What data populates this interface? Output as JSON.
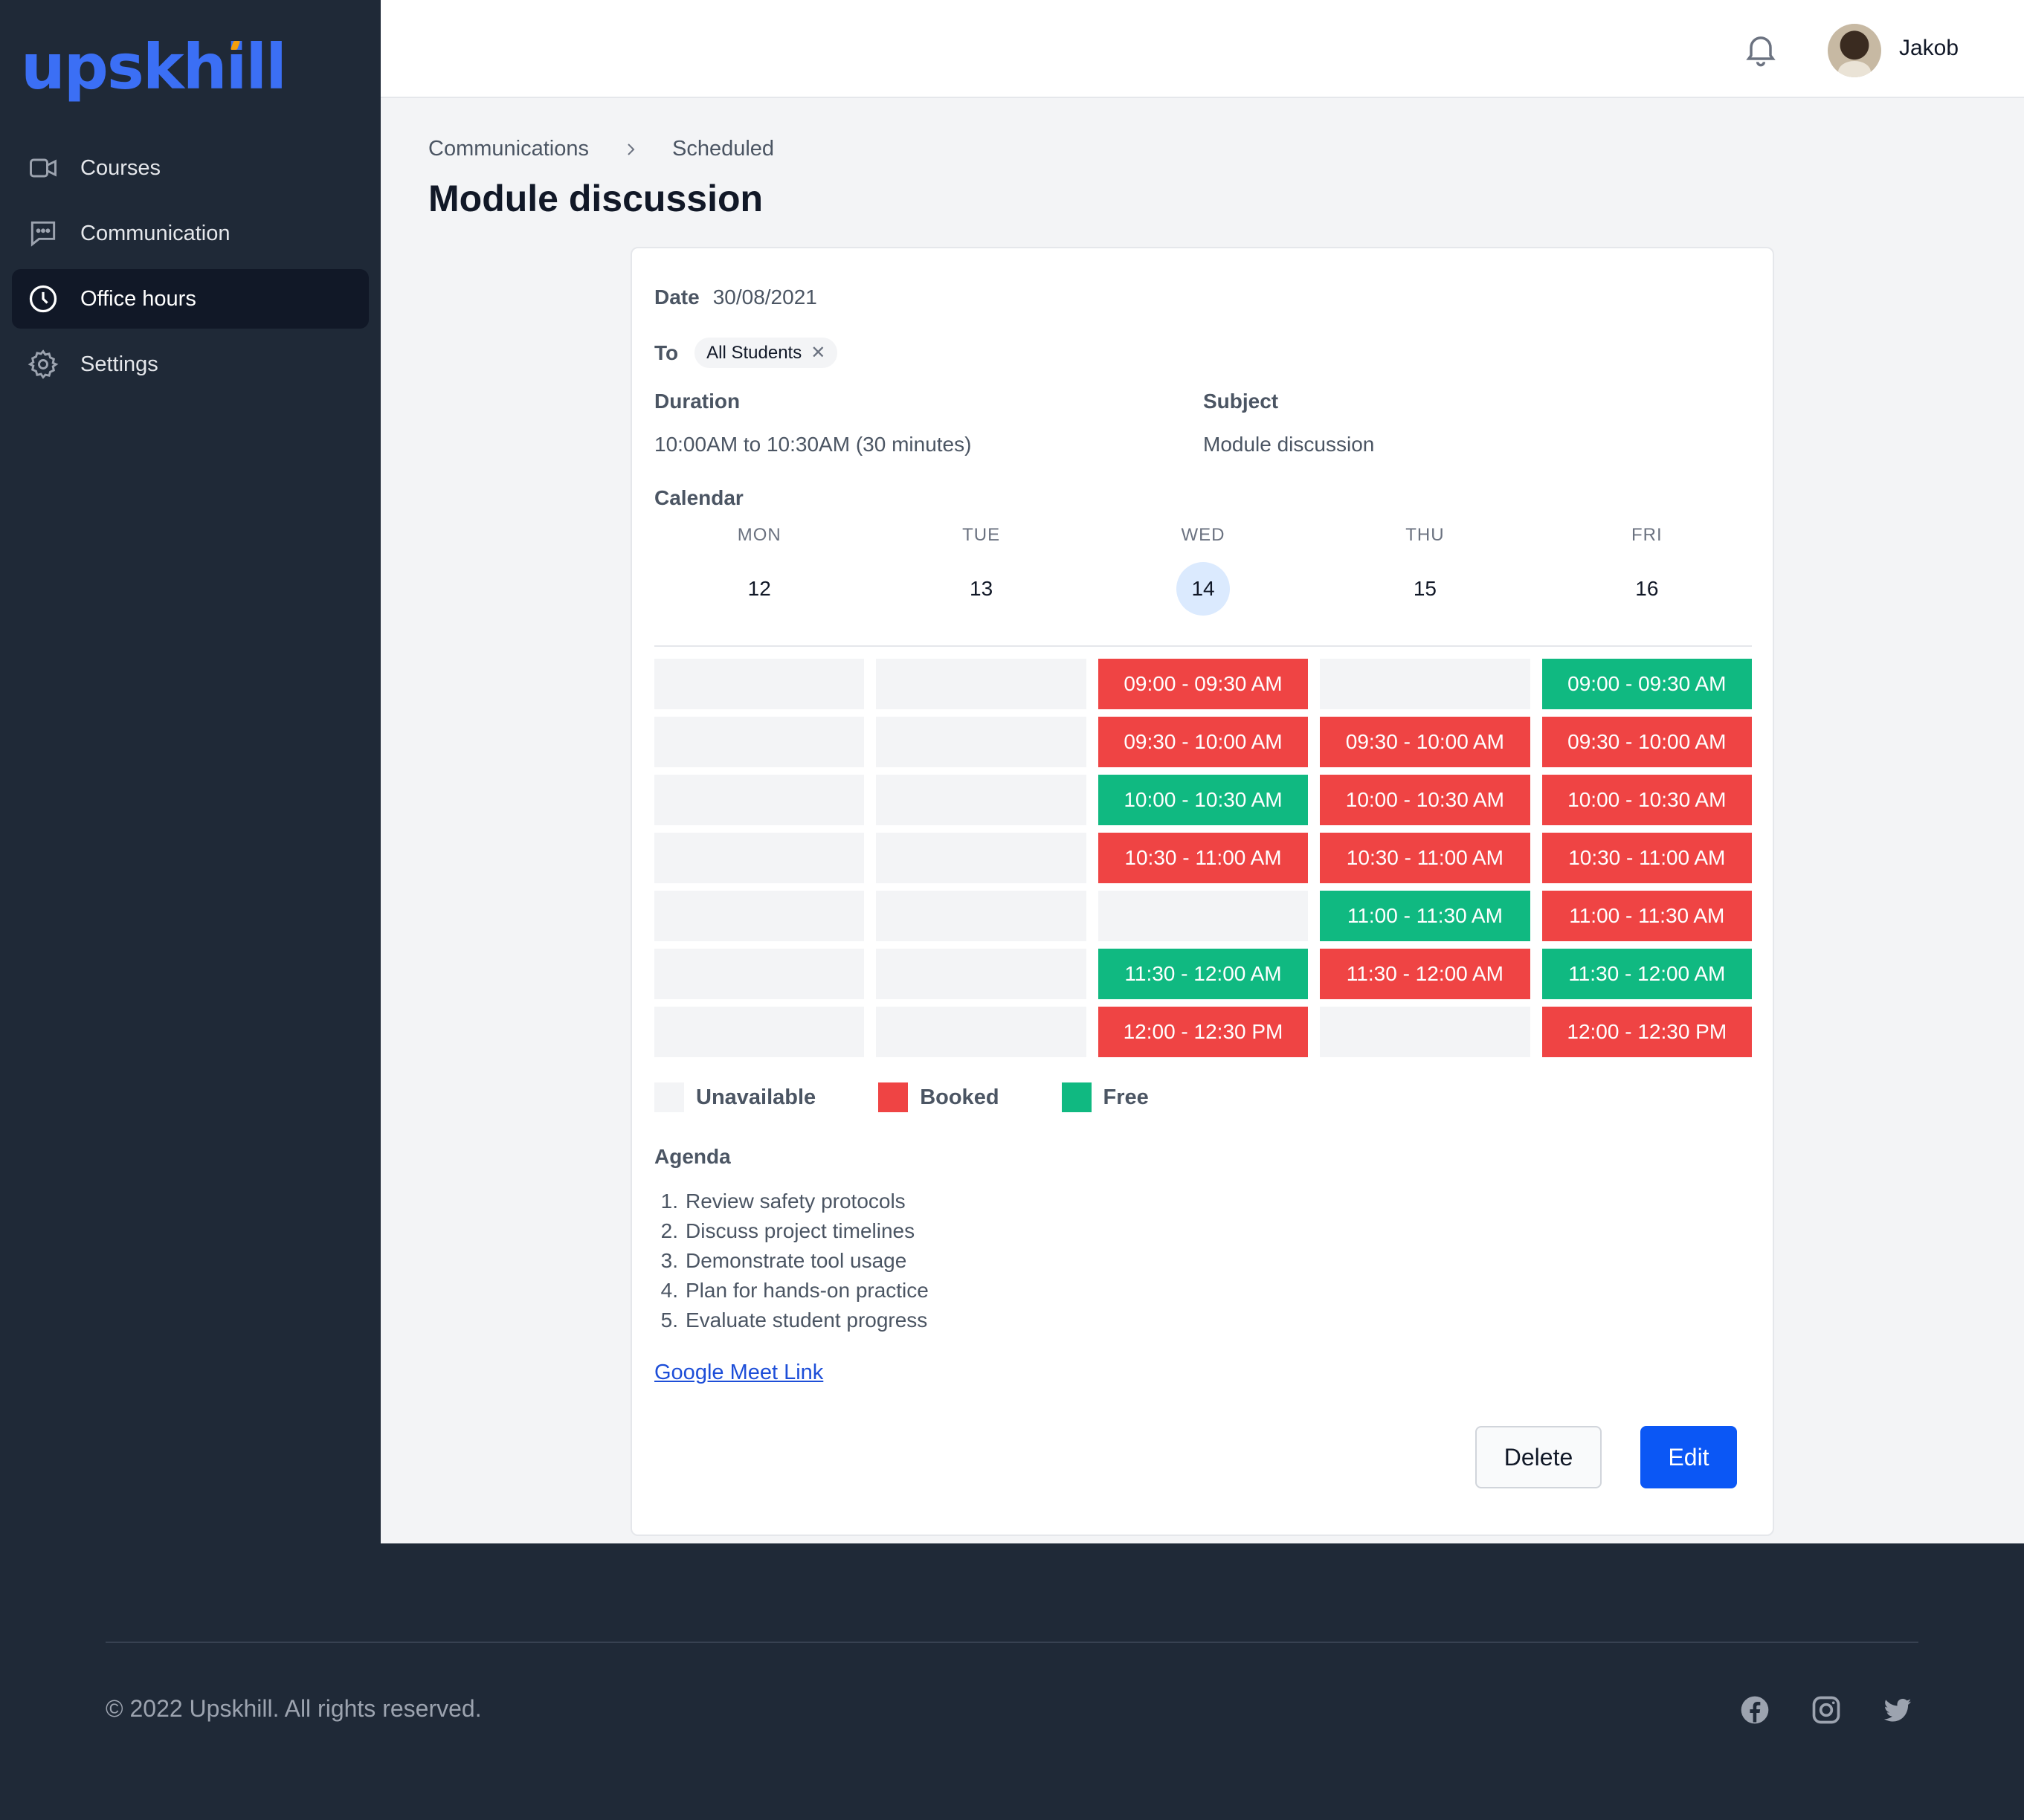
{
  "brand": {
    "logo": "upskhill",
    "accent_color": "#f59e0b",
    "logo_color": "#3b6ff5"
  },
  "sidebar": {
    "items": [
      {
        "label": "Courses",
        "icon": "video-camera-icon",
        "active": false
      },
      {
        "label": "Communication",
        "icon": "chat-bubble-icon",
        "active": false
      },
      {
        "label": "Office hours",
        "icon": "clock-icon",
        "active": true
      },
      {
        "label": "Settings",
        "icon": "gear-icon",
        "active": false
      }
    ]
  },
  "header": {
    "username": "Jakob",
    "bell_icon": "bell-icon"
  },
  "breadcrumb": {
    "items": [
      "Communications",
      "Scheduled"
    ],
    "separator_icon": "chevron-right-icon"
  },
  "page": {
    "title": "Module discussion"
  },
  "details": {
    "date_label": "Date",
    "date_value": "30/08/2021",
    "to_label": "To",
    "to_chip": "All Students",
    "duration_label": "Duration",
    "duration_value": "10:00AM to 10:30AM (30 minutes)",
    "subject_label": "Subject",
    "subject_value": "Module discussion",
    "calendar_label": "Calendar"
  },
  "calendar": {
    "days": [
      {
        "name": "MON",
        "num": "12",
        "today": false
      },
      {
        "name": "TUE",
        "num": "13",
        "today": false
      },
      {
        "name": "WED",
        "num": "14",
        "today": true
      },
      {
        "name": "THU",
        "num": "15",
        "today": false
      },
      {
        "name": "FRI",
        "num": "16",
        "today": false
      }
    ],
    "rows": [
      [
        {
          "s": "unavailable",
          "t": ""
        },
        {
          "s": "unavailable",
          "t": ""
        },
        {
          "s": "booked",
          "t": "09:00 - 09:30 AM"
        },
        {
          "s": "unavailable",
          "t": ""
        },
        {
          "s": "free",
          "t": "09:00 - 09:30 AM"
        }
      ],
      [
        {
          "s": "unavailable",
          "t": ""
        },
        {
          "s": "unavailable",
          "t": ""
        },
        {
          "s": "booked",
          "t": "09:30 - 10:00 AM"
        },
        {
          "s": "booked",
          "t": "09:30 - 10:00 AM"
        },
        {
          "s": "booked",
          "t": "09:30 - 10:00 AM"
        }
      ],
      [
        {
          "s": "unavailable",
          "t": ""
        },
        {
          "s": "unavailable",
          "t": ""
        },
        {
          "s": "free",
          "t": "10:00 - 10:30 AM"
        },
        {
          "s": "booked",
          "t": "10:00 - 10:30 AM"
        },
        {
          "s": "booked",
          "t": "10:00 - 10:30 AM"
        }
      ],
      [
        {
          "s": "unavailable",
          "t": ""
        },
        {
          "s": "unavailable",
          "t": ""
        },
        {
          "s": "booked",
          "t": "10:30 - 11:00 AM"
        },
        {
          "s": "booked",
          "t": "10:30 - 11:00 AM"
        },
        {
          "s": "booked",
          "t": "10:30 - 11:00 AM"
        }
      ],
      [
        {
          "s": "unavailable",
          "t": ""
        },
        {
          "s": "unavailable",
          "t": ""
        },
        {
          "s": "unavailable",
          "t": ""
        },
        {
          "s": "free",
          "t": "11:00 - 11:30 AM"
        },
        {
          "s": "booked",
          "t": "11:00 - 11:30 AM"
        }
      ],
      [
        {
          "s": "unavailable",
          "t": ""
        },
        {
          "s": "unavailable",
          "t": ""
        },
        {
          "s": "free",
          "t": "11:30 - 12:00 AM"
        },
        {
          "s": "booked",
          "t": "11:30 - 12:00 AM"
        },
        {
          "s": "free",
          "t": "11:30 - 12:00 AM"
        }
      ],
      [
        {
          "s": "unavailable",
          "t": ""
        },
        {
          "s": "unavailable",
          "t": ""
        },
        {
          "s": "booked",
          "t": "12:00 - 12:30 PM"
        },
        {
          "s": "unavailable",
          "t": ""
        },
        {
          "s": "booked",
          "t": "12:00 - 12:30 PM"
        }
      ]
    ],
    "colors": {
      "unavailable": "#f3f4f6",
      "booked": "#ef4444",
      "free": "#10b981"
    }
  },
  "legend": {
    "unavailable": "Unavailable",
    "booked": "Booked",
    "free": "Free"
  },
  "agenda": {
    "label": "Agenda",
    "items": [
      "Review safety protocols",
      "Discuss project timelines",
      "Demonstrate tool usage",
      "Plan for hands-on practice",
      "Evaluate student progress"
    ]
  },
  "links": {
    "meet": "Google Meet Link"
  },
  "actions": {
    "delete_label": "Delete",
    "edit_label": "Edit"
  },
  "footer": {
    "copyright": "© 2022 Upskhill. All rights reserved.",
    "social": [
      "facebook-icon",
      "instagram-icon",
      "twitter-icon"
    ]
  }
}
